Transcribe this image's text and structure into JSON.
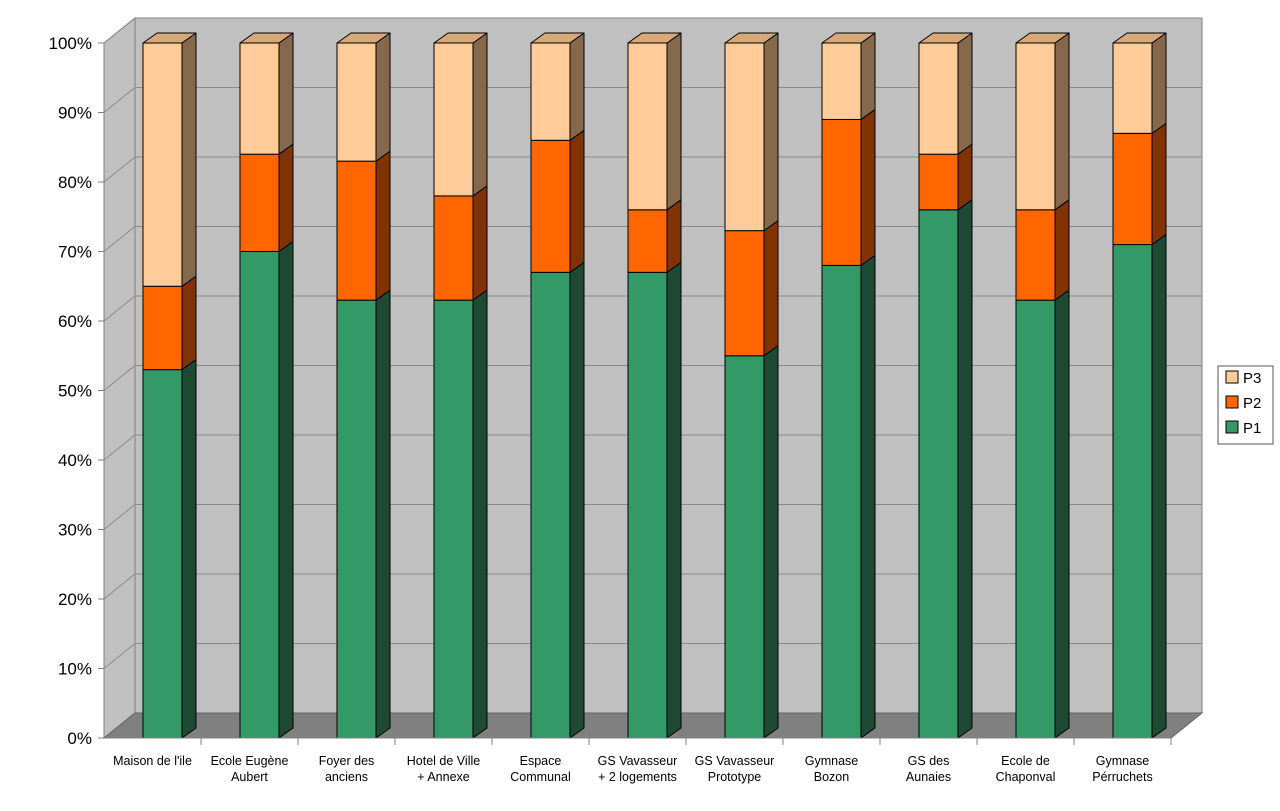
{
  "chart_data": {
    "type": "bar",
    "stacked": true,
    "percent": true,
    "three_d": true,
    "categories": [
      [
        "Maison de l'ile"
      ],
      [
        "Ecole Eugène",
        "Aubert"
      ],
      [
        "Foyer des",
        "anciens"
      ],
      [
        "Hotel de Ville",
        "+ Annexe"
      ],
      [
        "Espace",
        "Communal"
      ],
      [
        "GS Vavasseur",
        "+ 2 logements"
      ],
      [
        "GS Vavasseur",
        "Prototype"
      ],
      [
        "Gymnase",
        "Bozon"
      ],
      [
        "GS des",
        "Aunaies"
      ],
      [
        "Ecole de",
        "Chaponval"
      ],
      [
        "Gymnase",
        "Pérruchets"
      ]
    ],
    "series": [
      {
        "name": "P1",
        "values": [
          53,
          70,
          63,
          63,
          67,
          67,
          55,
          68,
          76,
          63,
          71
        ]
      },
      {
        "name": "P2",
        "values": [
          12,
          14,
          20,
          15,
          19,
          9,
          18,
          21,
          8,
          13,
          16
        ]
      },
      {
        "name": "P3",
        "values": [
          35,
          16,
          17,
          22,
          14,
          24,
          27,
          11,
          16,
          24,
          13
        ]
      }
    ],
    "ylim": [
      0,
      100
    ],
    "yticks": [
      "0%",
      "10%",
      "20%",
      "30%",
      "40%",
      "50%",
      "60%",
      "70%",
      "80%",
      "90%",
      "100%"
    ],
    "grid": true,
    "legend_position": "right",
    "colors": {
      "P1": {
        "front": "#339966",
        "side": "#1e4a33",
        "top": "#2b7a52"
      },
      "P2": {
        "front": "#ff6600",
        "side": "#803300",
        "top": "#cc5200"
      },
      "P3": {
        "front": "#ffcc99",
        "side": "#86684d",
        "top": "#d9a878"
      },
      "wall": "#c0c0c0",
      "floor": "#808080"
    }
  }
}
